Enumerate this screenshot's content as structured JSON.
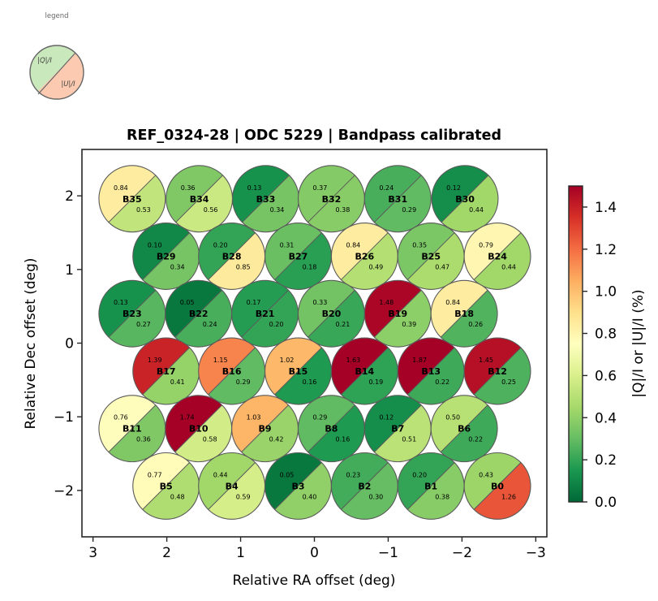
{
  "chart_data": {
    "type": "scatter",
    "title": "REF_0324-28  |  ODC 5229  |  Bandpass calibrated",
    "xlabel": "Relative RA offset (deg)",
    "ylabel": "Relative Dec offset (deg)",
    "xlim": [
      3.15,
      -3.15
    ],
    "ylim": [
      -2.63,
      2.63
    ],
    "x_inverted": true,
    "xticks": [
      3,
      2,
      1,
      0,
      -1,
      -2,
      -3
    ],
    "xtick_labels": [
      "3",
      "2",
      "1",
      "0",
      "−1",
      "−2",
      "−3"
    ],
    "yticks": [
      2,
      1,
      0,
      -1,
      -2
    ],
    "ytick_labels": [
      "2",
      "1",
      "0",
      "−1",
      "−2"
    ],
    "grid": false,
    "beam_radius_deg": 0.45,
    "colormap": "RdYlGn_r",
    "colorbar": {
      "label": "|Q|/I  or  |U|/I  (%)",
      "range": [
        0.0,
        1.5
      ],
      "ticks": [
        0.0,
        0.2,
        0.4,
        0.6,
        0.8,
        1.0,
        1.2,
        1.4
      ],
      "tick_labels": [
        "0.0",
        "0.2",
        "0.4",
        "0.6",
        "0.8",
        "1.0",
        "1.2",
        "1.4"
      ]
    },
    "legend": {
      "title": "legend",
      "upper_label": "|Q|/I",
      "lower_label": "|U|/I",
      "upper_color": "#c9e8bb",
      "lower_color": "#fbcab0",
      "placement": "top-left, outside axes"
    },
    "beams": [
      {
        "name": "B35",
        "ra": 2.47,
        "dec": 1.96,
        "q": 0.84,
        "u": 0.53
      },
      {
        "name": "B34",
        "ra": 1.56,
        "dec": 1.96,
        "q": 0.36,
        "u": 0.56
      },
      {
        "name": "B33",
        "ra": 0.66,
        "dec": 1.96,
        "q": 0.13,
        "u": 0.34
      },
      {
        "name": "B32",
        "ra": -0.23,
        "dec": 1.96,
        "q": 0.37,
        "u": 0.38
      },
      {
        "name": "B31",
        "ra": -1.13,
        "dec": 1.96,
        "q": 0.24,
        "u": 0.29
      },
      {
        "name": "B30",
        "ra": -2.04,
        "dec": 1.96,
        "q": 0.12,
        "u": 0.44
      },
      {
        "name": "B29",
        "ra": 2.01,
        "dec": 1.18,
        "q": 0.1,
        "u": 0.34
      },
      {
        "name": "B28",
        "ra": 1.12,
        "dec": 1.18,
        "q": 0.2,
        "u": 0.85
      },
      {
        "name": "B27",
        "ra": 0.22,
        "dec": 1.18,
        "q": 0.31,
        "u": 0.18
      },
      {
        "name": "B26",
        "ra": -0.68,
        "dec": 1.18,
        "q": 0.84,
        "u": 0.49
      },
      {
        "name": "B25",
        "ra": -1.58,
        "dec": 1.18,
        "q": 0.35,
        "u": 0.47
      },
      {
        "name": "B24",
        "ra": -2.48,
        "dec": 1.18,
        "q": 0.79,
        "u": 0.44
      },
      {
        "name": "B23",
        "ra": 2.47,
        "dec": 0.4,
        "q": 0.13,
        "u": 0.27
      },
      {
        "name": "B22",
        "ra": 1.57,
        "dec": 0.4,
        "q": 0.05,
        "u": 0.24
      },
      {
        "name": "B21",
        "ra": 0.67,
        "dec": 0.4,
        "q": 0.17,
        "u": 0.2
      },
      {
        "name": "B20",
        "ra": -0.23,
        "dec": 0.4,
        "q": 0.33,
        "u": 0.21
      },
      {
        "name": "B19",
        "ra": -1.13,
        "dec": 0.4,
        "q": 1.48,
        "u": 0.39
      },
      {
        "name": "B18",
        "ra": -2.03,
        "dec": 0.4,
        "q": 0.84,
        "u": 0.26
      },
      {
        "name": "B17",
        "ra": 2.01,
        "dec": -0.38,
        "q": 1.39,
        "u": 0.41
      },
      {
        "name": "B16",
        "ra": 1.12,
        "dec": -0.38,
        "q": 1.15,
        "u": 0.29
      },
      {
        "name": "B15",
        "ra": 0.22,
        "dec": -0.38,
        "q": 1.02,
        "u": 0.16
      },
      {
        "name": "B14",
        "ra": -0.68,
        "dec": -0.38,
        "q": 1.63,
        "u": 0.19
      },
      {
        "name": "B13",
        "ra": -1.58,
        "dec": -0.38,
        "q": 1.87,
        "u": 0.22
      },
      {
        "name": "B12",
        "ra": -2.48,
        "dec": -0.38,
        "q": 1.45,
        "u": 0.25
      },
      {
        "name": "B11",
        "ra": 2.47,
        "dec": -1.16,
        "q": 0.76,
        "u": 0.36
      },
      {
        "name": "B10",
        "ra": 1.57,
        "dec": -1.16,
        "q": 1.74,
        "u": 0.58
      },
      {
        "name": "B9",
        "ra": 0.67,
        "dec": -1.16,
        "q": 1.03,
        "u": 0.42
      },
      {
        "name": "B8",
        "ra": -0.23,
        "dec": -1.16,
        "q": 0.29,
        "u": 0.16
      },
      {
        "name": "B7",
        "ra": -1.13,
        "dec": -1.16,
        "q": 0.12,
        "u": 0.51
      },
      {
        "name": "B6",
        "ra": -2.03,
        "dec": -1.16,
        "q": 0.5,
        "u": 0.22
      },
      {
        "name": "B5",
        "ra": 2.01,
        "dec": -1.94,
        "q": 0.77,
        "u": 0.48
      },
      {
        "name": "B4",
        "ra": 1.12,
        "dec": -1.94,
        "q": 0.44,
        "u": 0.59
      },
      {
        "name": "B3",
        "ra": 0.22,
        "dec": -1.94,
        "q": 0.05,
        "u": 0.4
      },
      {
        "name": "B2",
        "ra": -0.68,
        "dec": -1.94,
        "q": 0.23,
        "u": 0.3
      },
      {
        "name": "B1",
        "ra": -1.58,
        "dec": -1.94,
        "q": 0.2,
        "u": 0.38
      },
      {
        "name": "B0",
        "ra": -2.48,
        "dec": -1.94,
        "q": 0.43,
        "u": 1.26
      }
    ]
  }
}
